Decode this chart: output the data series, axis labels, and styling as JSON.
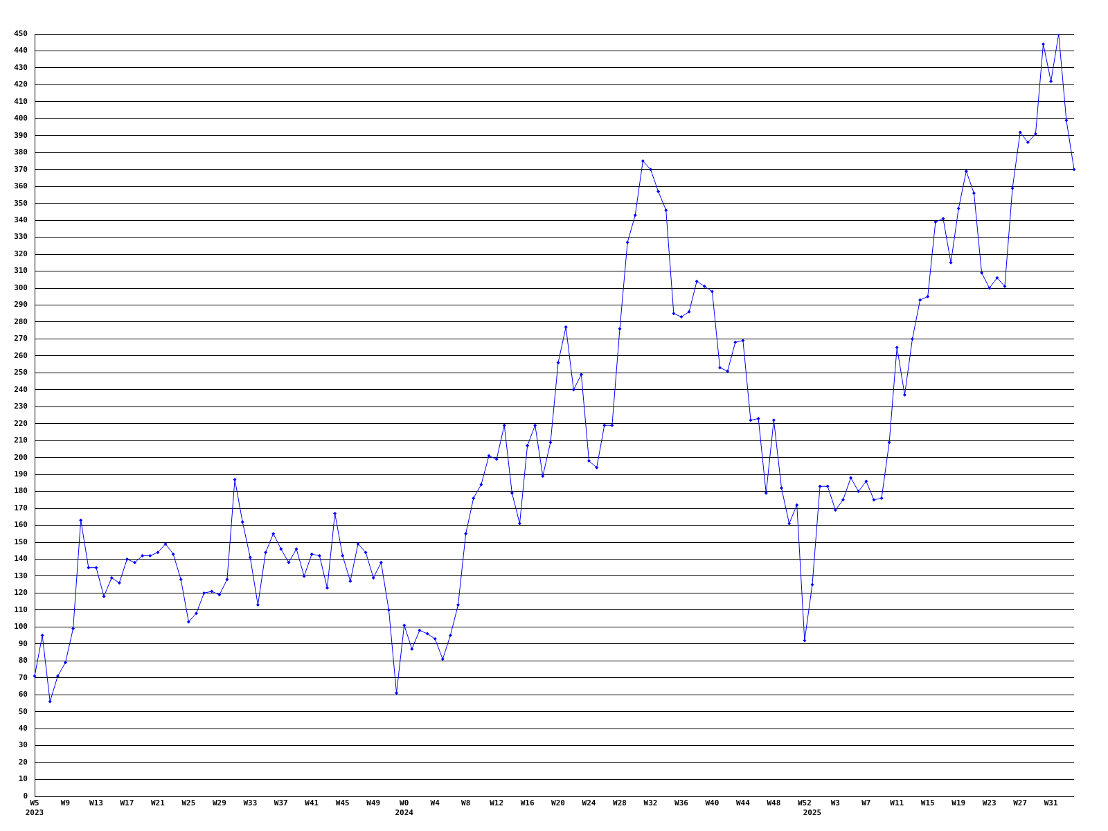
{
  "chart_data": {
    "type": "line",
    "categories": [
      "W5\n2023",
      null,
      null,
      null,
      "W9",
      null,
      null,
      null,
      "W13",
      null,
      null,
      null,
      "W17",
      null,
      null,
      null,
      "W21",
      null,
      null,
      null,
      "W25",
      null,
      null,
      null,
      "W29",
      null,
      null,
      null,
      "W33",
      null,
      null,
      null,
      "W37",
      null,
      null,
      null,
      "W41",
      null,
      null,
      null,
      "W45",
      null,
      null,
      null,
      "W49",
      null,
      null,
      null,
      "W0\n2024",
      null,
      null,
      null,
      "W4",
      null,
      null,
      null,
      "W8",
      null,
      null,
      null,
      "W12",
      null,
      null,
      null,
      "W16",
      null,
      null,
      null,
      "W20",
      null,
      null,
      null,
      "W24",
      null,
      null,
      null,
      "W28",
      null,
      null,
      null,
      "W32",
      null,
      null,
      null,
      "W36",
      null,
      null,
      null,
      "W40",
      null,
      null,
      null,
      "W44",
      null,
      null,
      null,
      "W48",
      null,
      null,
      null,
      "W52",
      "\n2025",
      null,
      null,
      "W3",
      null,
      null,
      null,
      "W7",
      null,
      null,
      null,
      "W11",
      null,
      null,
      null,
      "W15",
      null,
      null,
      null,
      "W19",
      null,
      null,
      null,
      "W23",
      null,
      null,
      null,
      "W27",
      null,
      null,
      null,
      "W31",
      null,
      null,
      null
    ],
    "series": [
      {
        "color": "#0000ff",
        "values": [
          71,
          95,
          56,
          71,
          79,
          99,
          163,
          135,
          135,
          118,
          129,
          126,
          140,
          138,
          142,
          142,
          144,
          149,
          143,
          128,
          103,
          108,
          120,
          121,
          119,
          128,
          187,
          162,
          141,
          113,
          144,
          155,
          146,
          138,
          146,
          130,
          143,
          142,
          123,
          167,
          142,
          127,
          149,
          144,
          129,
          138,
          110,
          61,
          101,
          87,
          98,
          96,
          93,
          81,
          95,
          113,
          155,
          176,
          184,
          201,
          199,
          219,
          179,
          161,
          207,
          219,
          189,
          209,
          256,
          277,
          240,
          249,
          198,
          194,
          219,
          219,
          276,
          327,
          343,
          375,
          370,
          357,
          346,
          285,
          283,
          286,
          304,
          301,
          298,
          253,
          251,
          268,
          269,
          222,
          223,
          179,
          222,
          182,
          161,
          172,
          92,
          125,
          183,
          183,
          169,
          175,
          188,
          180,
          186,
          175,
          176,
          209,
          265,
          237,
          270,
          293,
          295,
          339,
          341,
          315,
          347,
          369,
          356,
          309,
          300,
          306,
          301,
          359,
          392,
          386,
          391,
          444,
          422,
          450,
          399,
          370
        ]
      }
    ],
    "ylim": [
      0,
      450
    ],
    "yticks": [
      0,
      10,
      20,
      30,
      40,
      50,
      60,
      70,
      80,
      90,
      100,
      110,
      120,
      130,
      140,
      150,
      160,
      170,
      180,
      190,
      200,
      210,
      220,
      230,
      240,
      250,
      260,
      270,
      280,
      290,
      300,
      310,
      320,
      330,
      340,
      350,
      360,
      370,
      380,
      390,
      400,
      410,
      420,
      430,
      440,
      450
    ],
    "grid": "y",
    "marker": "diamond",
    "line_style": "solid"
  }
}
